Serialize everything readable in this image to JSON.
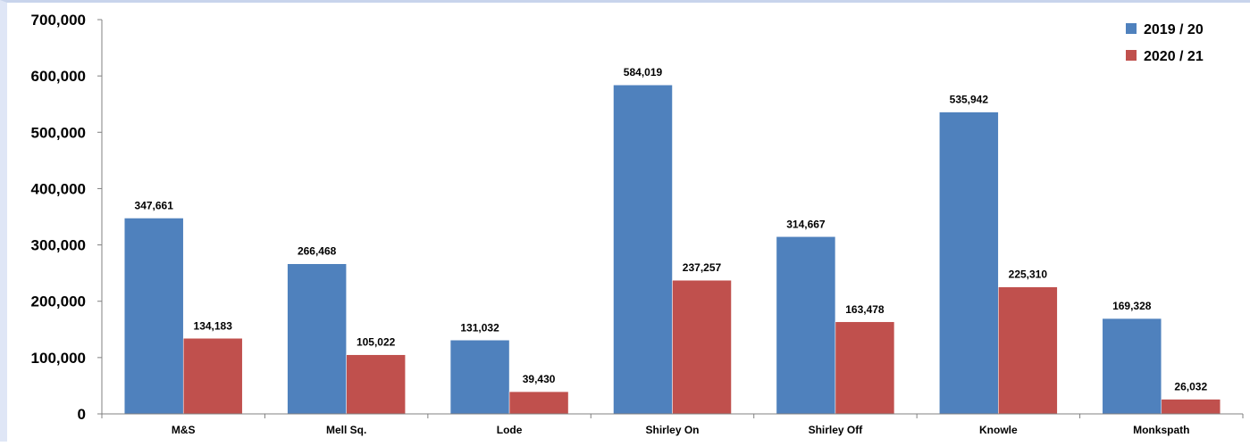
{
  "chart_data": {
    "type": "bar",
    "title": "",
    "xlabel": "",
    "ylabel": "",
    "categories": [
      "M&S",
      "Mell Sq.",
      "Lode",
      "Shirley On",
      "Shirley Off",
      "Knowle",
      "Monkspath"
    ],
    "series": [
      {
        "name": "2019 / 20",
        "color": "#4f81bd",
        "values": [
          347661,
          266468,
          131032,
          584019,
          314667,
          535942,
          169328
        ],
        "labels": [
          "347,661",
          "266,468",
          "131,032",
          "584,019",
          "314,667",
          "535,942",
          "169,328"
        ]
      },
      {
        "name": "2020 / 21",
        "color": "#c0504d",
        "values": [
          134183,
          105022,
          39430,
          237257,
          163478,
          225310,
          26032
        ],
        "labels": [
          "134,183",
          "105,022",
          "39,430",
          "237,257",
          "163,478",
          "225,310",
          "26,032"
        ]
      }
    ],
    "ylim": [
      0,
      700000
    ],
    "yticks": [
      0,
      100000,
      200000,
      300000,
      400000,
      500000,
      600000,
      700000
    ],
    "ytick_labels": [
      "0",
      "100,000",
      "200,000",
      "300,000",
      "400,000",
      "500,000",
      "600,000",
      "700,000"
    ],
    "grid": false,
    "legend_position": "top-right"
  }
}
